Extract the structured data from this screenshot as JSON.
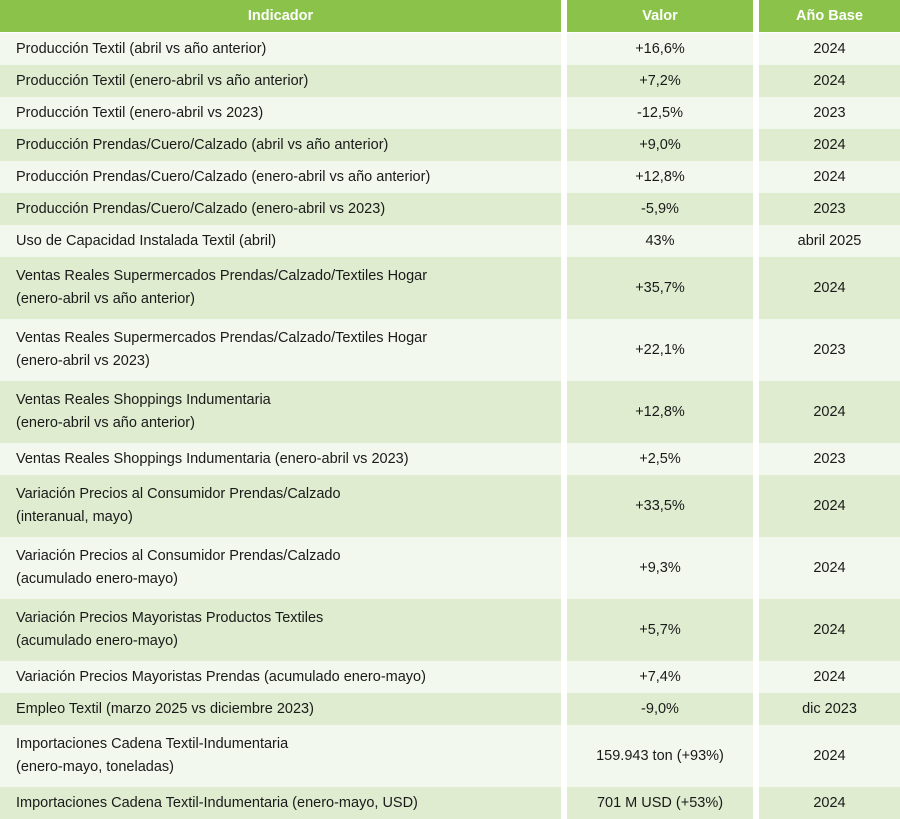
{
  "table": {
    "headers": [
      "Indicador",
      "Valor",
      "Año Base"
    ],
    "rows": [
      {
        "indicador": [
          "Producción Textil (abril vs año anterior)"
        ],
        "valor": "+16,6%",
        "base": "2024"
      },
      {
        "indicador": [
          "Producción Textil (enero-abril vs año anterior)"
        ],
        "valor": "+7,2%",
        "base": "2024"
      },
      {
        "indicador": [
          "Producción Textil (enero-abril vs 2023)"
        ],
        "valor": "-12,5%",
        "base": "2023"
      },
      {
        "indicador": [
          "Producción Prendas/Cuero/Calzado (abril vs año anterior)"
        ],
        "valor": "+9,0%",
        "base": "2024"
      },
      {
        "indicador": [
          "Producción Prendas/Cuero/Calzado (enero-abril vs año anterior)"
        ],
        "valor": "+12,8%",
        "base": "2024"
      },
      {
        "indicador": [
          "Producción Prendas/Cuero/Calzado (enero-abril vs 2023)"
        ],
        "valor": "-5,9%",
        "base": "2023"
      },
      {
        "indicador": [
          "Uso de Capacidad Instalada Textil (abril)"
        ],
        "valor": "43%",
        "base": "abril 2025"
      },
      {
        "indicador": [
          "Ventas Reales Supermercados Prendas/Calzado/Textiles Hogar",
          "(enero-abril vs año anterior)"
        ],
        "valor": "+35,7%",
        "base": "2024"
      },
      {
        "indicador": [
          "Ventas Reales Supermercados Prendas/Calzado/Textiles Hogar",
          "(enero-abril vs 2023)"
        ],
        "valor": "+22,1%",
        "base": "2023"
      },
      {
        "indicador": [
          "Ventas Reales Shoppings Indumentaria",
          "(enero-abril vs año anterior)"
        ],
        "valor": "+12,8%",
        "base": "2024"
      },
      {
        "indicador": [
          "Ventas Reales Shoppings Indumentaria (enero-abril vs 2023)"
        ],
        "valor": "+2,5%",
        "base": "2023"
      },
      {
        "indicador": [
          "Variación Precios al Consumidor Prendas/Calzado",
          "(interanual, mayo)"
        ],
        "valor": "+33,5%",
        "base": "2024"
      },
      {
        "indicador": [
          "Variación Precios al Consumidor Prendas/Calzado",
          "(acumulado enero-mayo)"
        ],
        "valor": "+9,3%",
        "base": "2024"
      },
      {
        "indicador": [
          "Variación Precios Mayoristas Productos Textiles",
          "(acumulado enero-mayo)"
        ],
        "valor": "+5,7%",
        "base": "2024"
      },
      {
        "indicador": [
          "Variación Precios Mayoristas Prendas (acumulado enero-mayo)"
        ],
        "valor": "+7,4%",
        "base": "2024"
      },
      {
        "indicador": [
          "Empleo Textil (marzo 2025 vs diciembre 2023)"
        ],
        "valor": "-9,0%",
        "base": "dic 2023"
      },
      {
        "indicador": [
          "Importaciones Cadena Textil-Indumentaria",
          "(enero-mayo, toneladas)"
        ],
        "valor": "159.943 ton (+93%)",
        "base": "2024"
      },
      {
        "indicador": [
          "Importaciones Cadena Textil-Indumentaria (enero-mayo, USD)"
        ],
        "valor": "701 M USD (+53%)",
        "base": "2024"
      }
    ]
  },
  "colors": {
    "header_bg": "#8bc34a",
    "row_light": "#f2f8ee",
    "row_dark": "#dfecd0"
  }
}
